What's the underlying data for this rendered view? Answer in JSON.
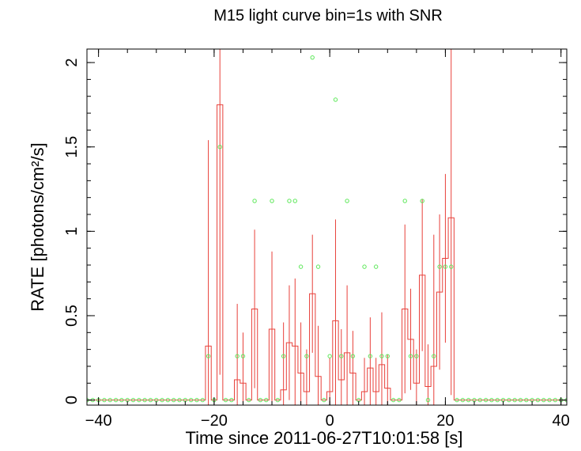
{
  "chart_data": {
    "type": "line",
    "title": "M15 light curve bin=1s with SNR",
    "xlabel": "Time since 2011-06-27T10:01:58 [s]",
    "ylabel": "RATE [photons/cm²/s]",
    "xlim": [
      -42,
      41
    ],
    "ylim": [
      -0.03,
      2.08
    ],
    "x_ticks": [
      {
        "value": -40,
        "label": "−40"
      },
      {
        "value": -20,
        "label": "−20"
      },
      {
        "value": 0,
        "label": "0"
      },
      {
        "value": 20,
        "label": "20"
      },
      {
        "value": 40,
        "label": "40"
      }
    ],
    "y_ticks": [
      {
        "value": 0,
        "label": "0"
      },
      {
        "value": 0.5,
        "label": "0.5"
      },
      {
        "value": 1,
        "label": "1"
      },
      {
        "value": 1.5,
        "label": "1.5"
      },
      {
        "value": 2,
        "label": "2"
      }
    ],
    "x_minor_step": 5,
    "y_minor_step": 0.1,
    "grid": false,
    "colors": {
      "rate": "#e8403a",
      "snr": "#5ee85a",
      "axis": "#000000"
    },
    "series": [
      {
        "kind": "histogram-with-errorbars",
        "x": [
          -42,
          -41,
          -40,
          -39,
          -38,
          -37,
          -36,
          -35,
          -34,
          -33,
          -32,
          -31,
          -30,
          -29,
          -28,
          -27,
          -26,
          -25,
          -24,
          -23,
          -22,
          -21,
          -20,
          -19,
          -18,
          -17,
          -16,
          -15,
          -14,
          -13,
          -12,
          -11,
          -10,
          -9,
          -8,
          -7,
          -6,
          -5,
          -4,
          -3,
          -2,
          -1,
          0,
          1,
          2,
          3,
          4,
          5,
          6,
          7,
          8,
          9,
          10,
          11,
          12,
          13,
          14,
          15,
          16,
          17,
          18,
          19,
          20,
          21,
          22,
          23,
          24,
          25,
          26,
          27,
          28,
          29,
          30,
          31,
          32,
          33,
          34,
          35,
          36,
          37,
          38,
          39,
          40,
          41
        ],
        "y": [
          0,
          0,
          0,
          0,
          0,
          0,
          0,
          0,
          0,
          0,
          0,
          0,
          0,
          0,
          0,
          0,
          0,
          0,
          0,
          0,
          0,
          0.32,
          0,
          1.75,
          0,
          0,
          0.12,
          0.1,
          0,
          0.54,
          0,
          0,
          0.42,
          0,
          0.06,
          0.34,
          0.32,
          0.16,
          0.05,
          0.63,
          0.14,
          0,
          0.05,
          0.47,
          0.12,
          0.28,
          0.16,
          0,
          0.05,
          0.19,
          0.05,
          0.21,
          0.07,
          0,
          0,
          0.54,
          0.36,
          0.1,
          0.74,
          0.08,
          0.2,
          0.64,
          0.84,
          1.08,
          0,
          0,
          0,
          0,
          0,
          0,
          0,
          0,
          0,
          0,
          0,
          0,
          0,
          0,
          0,
          0,
          0,
          0,
          0,
          0
        ],
        "err": [
          0,
          0,
          0,
          0,
          0,
          0,
          0,
          0,
          0,
          0,
          0,
          0,
          0,
          0,
          0,
          0,
          0,
          0,
          0,
          0,
          0,
          1.22,
          0,
          1.6,
          0,
          0,
          0.45,
          0.3,
          0,
          0.47,
          0,
          0,
          0.46,
          0,
          0.4,
          0.34,
          0.4,
          0.3,
          0.25,
          0.35,
          0.3,
          0,
          0.2,
          0.6,
          0.3,
          0.4,
          0.25,
          0,
          0.2,
          0.3,
          0.2,
          0.31,
          0.2,
          0,
          0,
          0.5,
          0.3,
          0.2,
          0.45,
          0.25,
          0.78,
          0.46,
          0.5,
          1.05,
          0,
          0,
          0,
          0,
          0,
          0,
          0,
          0,
          0,
          0,
          0,
          0,
          0,
          0,
          0,
          0,
          0,
          0,
          0,
          0
        ]
      },
      {
        "kind": "points",
        "x": [
          -42,
          -41,
          -40,
          -39,
          -38,
          -37,
          -36,
          -35,
          -34,
          -33,
          -32,
          -31,
          -30,
          -29,
          -28,
          -27,
          -26,
          -25,
          -24,
          -23,
          -22,
          -21,
          -20,
          -19,
          -18,
          -17,
          -16,
          -15,
          -14,
          -13,
          -12,
          -11,
          -10,
          -9,
          -8,
          -7,
          -6,
          -5,
          -4,
          -3,
          -2,
          -1,
          0,
          1,
          2,
          3,
          4,
          5,
          6,
          7,
          8,
          9,
          10,
          11,
          12,
          13,
          14,
          15,
          16,
          17,
          18,
          19,
          20,
          21,
          22,
          23,
          24,
          25,
          26,
          27,
          28,
          29,
          30,
          31,
          32,
          33,
          34,
          35,
          36,
          37,
          38,
          39,
          40,
          41
        ],
        "y": [
          0,
          0,
          0,
          0,
          0,
          0,
          0,
          0,
          0,
          0,
          0,
          0,
          0,
          0,
          0,
          0,
          0,
          0,
          0,
          0,
          0,
          0.26,
          0,
          1.5,
          0,
          0,
          0.26,
          0.26,
          0,
          1.18,
          0,
          0,
          1.18,
          0,
          0.26,
          1.18,
          1.18,
          0.79,
          0.26,
          2.03,
          0.79,
          0,
          0.26,
          1.78,
          0.26,
          1.18,
          0.26,
          0,
          0.79,
          0.26,
          0.79,
          0.26,
          0.26,
          0,
          0,
          1.18,
          0.26,
          0.26,
          1.18,
          0,
          0.26,
          0.79,
          0.79,
          0.79,
          0,
          0,
          0,
          0,
          0,
          0,
          0,
          0,
          0,
          0,
          0,
          0,
          0,
          0,
          0,
          0,
          0,
          0,
          0,
          0
        ]
      }
    ]
  }
}
